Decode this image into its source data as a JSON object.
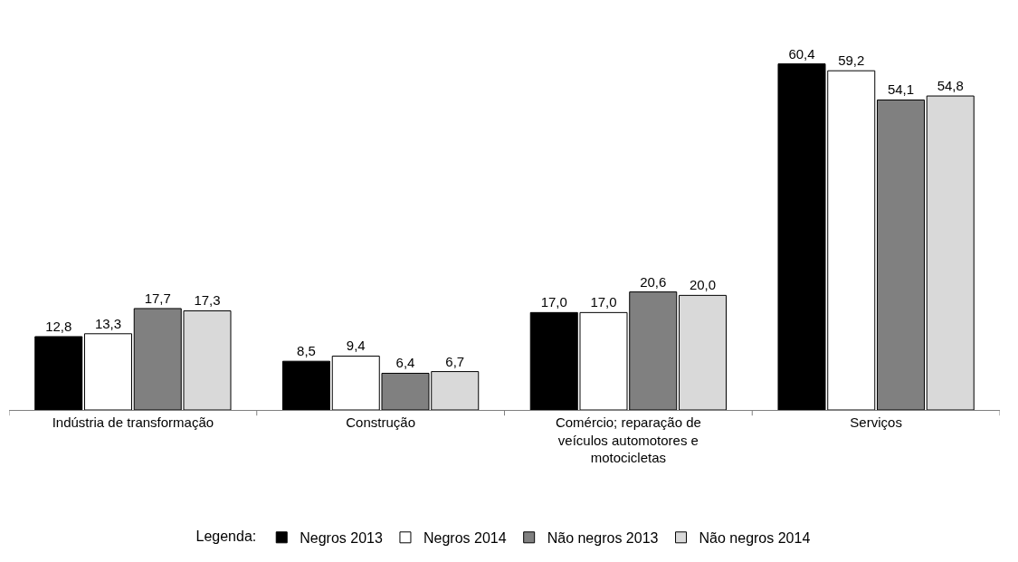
{
  "chart_data": {
    "type": "bar",
    "categories": [
      "Indústria de transformação",
      "Construção",
      "Comércio; reparação de veículos automotores e motocicletas",
      "Serviços"
    ],
    "series": [
      {
        "name": "Negros 2013",
        "color": "#000000",
        "values": [
          12.8,
          8.5,
          17.0,
          60.4
        ],
        "value_labels": [
          "12,8",
          "8,5",
          "17,0",
          "60,4"
        ]
      },
      {
        "name": "Negros 2014",
        "color": "#ffffff",
        "values": [
          13.3,
          9.4,
          17.0,
          59.2
        ],
        "value_labels": [
          "13,3",
          "9,4",
          "17,0",
          "59,2"
        ]
      },
      {
        "name": "Não negros 2013",
        "color": "#808080",
        "values": [
          17.7,
          6.4,
          20.6,
          54.1
        ],
        "value_labels": [
          "17,7",
          "6,4",
          "20,6",
          "54,1"
        ]
      },
      {
        "name": "Não negros 2014",
        "color": "#d9d9d9",
        "values": [
          17.3,
          6.7,
          20.0,
          54.8
        ],
        "value_labels": [
          "17,3",
          "6,7",
          "20,0",
          "54,8"
        ]
      }
    ],
    "legend_title": "Legenda:",
    "legend": "bottom",
    "tick_labels": "x"
  }
}
